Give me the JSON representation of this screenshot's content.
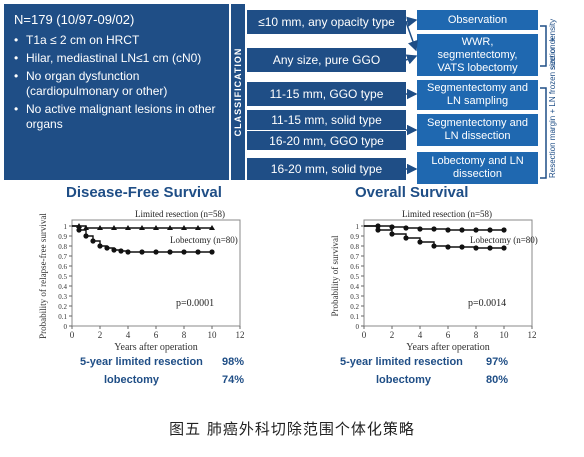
{
  "patient": {
    "header": "N=179 (10/97-09/02)",
    "criteria": [
      "T1a ≤ 2 cm on HRCT",
      "Hilar, mediastinal LN≤1 cm (cN0)",
      "No organ dysfunction (cardiopulmonary or other)",
      "No active malignant lesions in other organs"
    ]
  },
  "classification_label": "CLASSIFICATION",
  "classes": [
    "≤10 mm, any opacity type",
    "Any size, pure GGO",
    "11-15 mm, GGO type",
    "11-15 mm, solid type",
    "16-20 mm, GGO type",
    "16-20 mm, solid type"
  ],
  "treatments": [
    "Observation",
    "WWR, segmentectomy, VATS lobectomy",
    "Segmentectomy and LN sampling",
    "Segmentectomy and LN dissection",
    "Lobectomy and LN dissection"
  ],
  "side_notes": {
    "size_density": "size or density",
    "margin_frozen": "Resection margin + LN frozen section +"
  },
  "colors": {
    "dark_blue": "#1f4e86",
    "box_blue": "#1f68b0",
    "curve": "#111111"
  },
  "chart_data": [
    {
      "type": "line",
      "title": "Disease-Free Survival",
      "ylabel": "Probability of relapse-free survival",
      "xlabel": "Years after operation",
      "x_ticks": [
        "0",
        "2",
        "4",
        "6",
        "8",
        "10",
        "12"
      ],
      "y_ticks": [
        "0",
        "0.1",
        "0.2",
        "0.3",
        "0.4",
        "0.5",
        "0.6",
        "0.7",
        "0.8",
        "0.9",
        "1"
      ],
      "xlim": [
        0,
        12
      ],
      "ylim": [
        0,
        1
      ],
      "series": [
        {
          "name": "Limited resection (n=58)",
          "x": [
            0,
            0.5,
            1,
            2,
            3,
            4,
            5,
            6,
            7,
            8,
            9,
            10
          ],
          "y": [
            1,
            1,
            0.98,
            0.98,
            0.98,
            0.98,
            0.98,
            0.98,
            0.98,
            0.98,
            0.98,
            0.98
          ]
        },
        {
          "name": "Lobectomy (n=80)",
          "x": [
            0,
            0.5,
            1,
            1.5,
            2,
            2.5,
            3,
            3.5,
            4,
            5,
            6,
            7,
            8,
            9,
            10
          ],
          "y": [
            1,
            0.96,
            0.9,
            0.85,
            0.8,
            0.78,
            0.76,
            0.75,
            0.74,
            0.74,
            0.74,
            0.74,
            0.74,
            0.74,
            0.74
          ]
        }
      ],
      "p_value": "p=0.0001",
      "summary": [
        {
          "label": "5-year limited resection",
          "value": "98%"
        },
        {
          "label": "lobectomy",
          "value": "74%"
        }
      ]
    },
    {
      "type": "line",
      "title": "Overall Survival",
      "ylabel": "Probability of survival",
      "xlabel": "Years after operation",
      "x_ticks": [
        "0",
        "2",
        "4",
        "6",
        "8",
        "10",
        "12"
      ],
      "y_ticks": [
        "0",
        "0.1",
        "0.2",
        "0.3",
        "0.4",
        "0.5",
        "0.6",
        "0.7",
        "0.8",
        "0.9",
        "1"
      ],
      "xlim": [
        0,
        12
      ],
      "ylim": [
        0,
        1
      ],
      "series": [
        {
          "name": "Limited resection (n=58)",
          "x": [
            0,
            1,
            2,
            3,
            4,
            5,
            6,
            7,
            8,
            9,
            10
          ],
          "y": [
            1,
            1,
            0.99,
            0.98,
            0.97,
            0.97,
            0.96,
            0.96,
            0.96,
            0.96,
            0.96
          ]
        },
        {
          "name": "Lobectomy (n=80)",
          "x": [
            0,
            1,
            2,
            3,
            4,
            5,
            6,
            7,
            8,
            9,
            10
          ],
          "y": [
            1,
            0.96,
            0.92,
            0.88,
            0.84,
            0.8,
            0.79,
            0.79,
            0.78,
            0.78,
            0.78
          ]
        }
      ],
      "p_value": "p=0.0014",
      "summary": [
        {
          "label": "5-year limited resection",
          "value": "97%"
        },
        {
          "label": "lobectomy",
          "value": "80%"
        }
      ]
    }
  ],
  "caption": "图五  肺癌外科切除范围个体化策略"
}
